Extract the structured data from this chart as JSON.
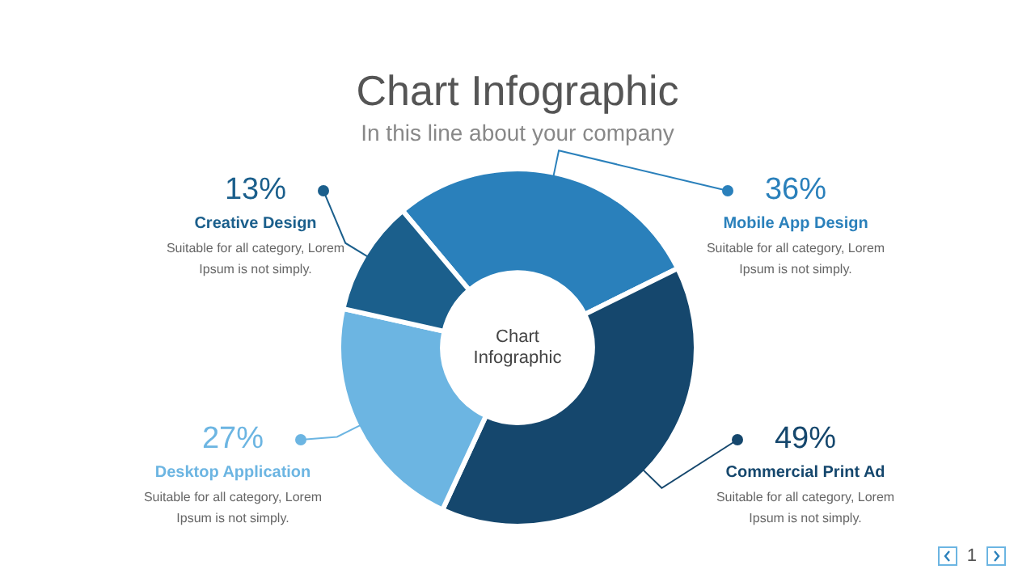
{
  "chart_data": {
    "type": "donut",
    "title": "Chart Infographic",
    "subtitle": "In this line about your company",
    "categories": [
      "Mobile App Design",
      "Commercial Print Ad",
      "Desktop Application",
      "Creative Design"
    ],
    "values": [
      36,
      49,
      27,
      13
    ],
    "colors": [
      "#2a80bb",
      "#15476d",
      "#6cb5e2",
      "#1b5f8c"
    ],
    "value_labels": [
      "36%",
      "49%",
      "27%",
      "13%"
    ],
    "annotations": [
      "Suitable for all category, Lorem Ipsum is not simply.",
      "Suitable for all category, Lorem Ipsum is not simply.",
      "Suitable for all category, Lorem Ipsum is not simply.",
      "Suitable for all category, Lorem Ipsum is not simply.",
      "Chart Infographic",
      "1"
    ],
    "legend": "left"
  }
}
